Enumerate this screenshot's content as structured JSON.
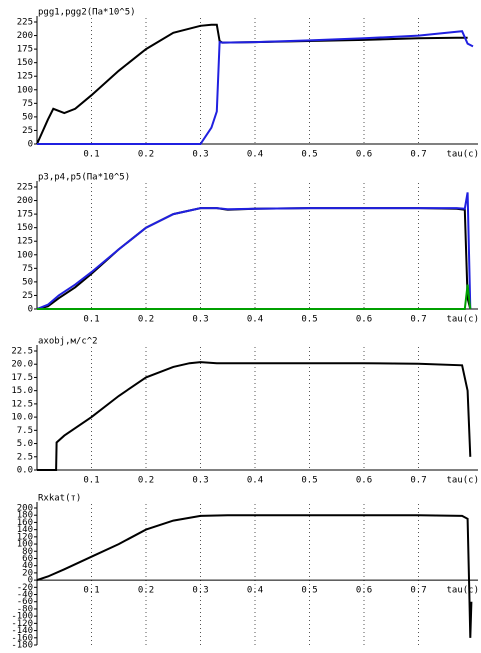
{
  "chart_data": [
    {
      "type": "line",
      "title": "pgg1,pgg2(Па*10^5)",
      "xlabel": "tau(c)",
      "x": [
        0,
        0.02,
        0.03,
        0.05,
        0.07,
        0.1,
        0.15,
        0.2,
        0.25,
        0.3,
        0.32,
        0.33,
        0.335,
        0.34,
        0.4,
        0.5,
        0.6,
        0.7,
        0.77,
        0.78,
        0.79,
        0.8
      ],
      "series": [
        {
          "color": "#000000",
          "values": [
            0,
            45,
            65,
            57,
            65,
            90,
            135,
            175,
            205,
            218,
            220,
            220,
            190,
            187,
            188,
            190,
            192,
            195,
            196,
            196,
            196,
            null
          ]
        },
        {
          "color": "#2020e0",
          "values": [
            0,
            0,
            0,
            0,
            0,
            0,
            0,
            0,
            0,
            0,
            30,
            60,
            188,
            187,
            188,
            191,
            195,
            200,
            207,
            208,
            185,
            180
          ]
        }
      ],
      "xlim": [
        0,
        0.8
      ],
      "ylim": [
        0,
        225
      ],
      "xticks": [
        0.1,
        0.2,
        0.3,
        0.4,
        0.5,
        0.6,
        0.7
      ],
      "yticks": [
        0,
        25,
        50,
        75,
        100,
        125,
        150,
        175,
        200,
        225
      ],
      "grid": true
    },
    {
      "type": "line",
      "title": "p3,p4,p5(Па*10^5)",
      "xlabel": "tau(c)",
      "x": [
        0,
        0.02,
        0.04,
        0.07,
        0.1,
        0.15,
        0.2,
        0.25,
        0.3,
        0.33,
        0.35,
        0.4,
        0.5,
        0.6,
        0.7,
        0.77,
        0.785,
        0.79,
        0.795
      ],
      "series": [
        {
          "color": "#000000",
          "values": [
            0,
            5,
            20,
            40,
            65,
            110,
            150,
            175,
            186,
            186,
            183,
            185,
            186,
            186,
            186,
            185,
            183,
            20,
            0
          ]
        },
        {
          "color": "#2020e0",
          "values": [
            0,
            8,
            25,
            45,
            68,
            110,
            150,
            175,
            186,
            186,
            184,
            185,
            186,
            186,
            186,
            186,
            185,
            215,
            0
          ]
        },
        {
          "color": "#00a000",
          "values": [
            0,
            0,
            0,
            0,
            0,
            0,
            0,
            0,
            0,
            0,
            0,
            0,
            0,
            0,
            0,
            0,
            0,
            45,
            0
          ]
        }
      ],
      "xlim": [
        0,
        0.8
      ],
      "ylim": [
        0,
        225
      ],
      "xticks": [
        0.1,
        0.2,
        0.3,
        0.4,
        0.5,
        0.6,
        0.7
      ],
      "yticks": [
        0,
        25,
        50,
        75,
        100,
        125,
        150,
        175,
        200,
        225
      ],
      "grid": true
    },
    {
      "type": "line",
      "title": "axobj,м/c^2",
      "xlabel": "tau(c)",
      "x": [
        0,
        0.035,
        0.036,
        0.05,
        0.1,
        0.15,
        0.2,
        0.25,
        0.28,
        0.3,
        0.33,
        0.4,
        0.5,
        0.6,
        0.7,
        0.78,
        0.79,
        0.795
      ],
      "series": [
        {
          "color": "#000000",
          "values": [
            0,
            0,
            5.2,
            6.5,
            10,
            14,
            17.5,
            19.5,
            20.2,
            20.4,
            20.2,
            20.2,
            20.2,
            20.2,
            20.1,
            19.8,
            15,
            2.5
          ]
        }
      ],
      "xlim": [
        0,
        0.8
      ],
      "ylim": [
        0,
        22.5
      ],
      "xticks": [
        0.1,
        0.2,
        0.3,
        0.4,
        0.5,
        0.6,
        0.7
      ],
      "yticks": [
        {
          "value": 0,
          "label": "0.0"
        },
        2.5,
        {
          "value": 5,
          "label": "5.0"
        },
        7.5,
        {
          "value": 10,
          "label": "10.0"
        },
        12.5,
        {
          "value": 15,
          "label": "15.0"
        },
        17.5,
        {
          "value": 20,
          "label": "20.0"
        },
        22.5
      ],
      "grid": true
    },
    {
      "type": "line",
      "title": "Rxkat(т)",
      "xlabel": "tau(c)",
      "x": [
        0,
        0.02,
        0.05,
        0.1,
        0.15,
        0.2,
        0.25,
        0.3,
        0.35,
        0.4,
        0.5,
        0.6,
        0.7,
        0.78,
        0.79,
        0.793,
        0.795,
        0.797
      ],
      "series": [
        {
          "color": "#000000",
          "values": [
            0,
            10,
            30,
            65,
            100,
            140,
            165,
            178,
            180,
            180,
            180,
            180,
            180,
            178,
            170,
            -20,
            -160,
            -60
          ]
        }
      ],
      "xlim": [
        0,
        0.8
      ],
      "ylim": [
        -180,
        200
      ],
      "xticks": [
        0.1,
        0.2,
        0.3,
        0.4,
        0.5,
        0.6,
        0.7
      ],
      "yticks": [
        200,
        180,
        160,
        140,
        120,
        100,
        80,
        60,
        40,
        20,
        0,
        -20,
        -40,
        -60,
        -80,
        -100,
        -120,
        -140,
        -160,
        -180
      ],
      "grid": true
    }
  ]
}
